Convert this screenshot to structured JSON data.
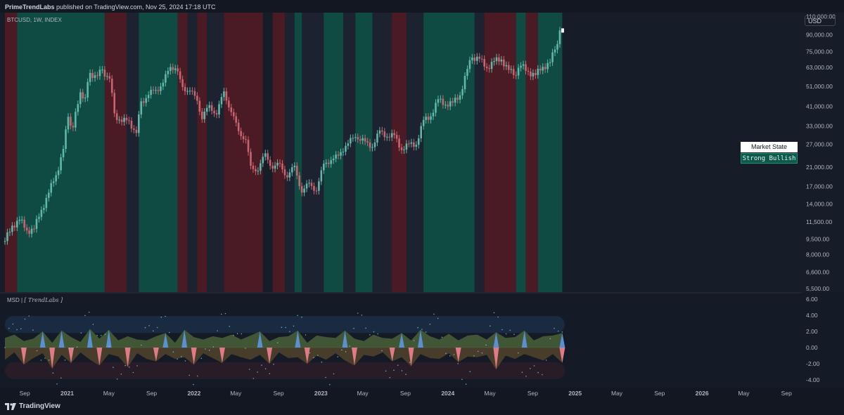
{
  "header": {
    "publisher": "PrimeTrendLabs",
    "published_text": "published on TradingView.com, Nov 25, 2024 17:18 UTC"
  },
  "symbol_label": "BTCUSD, 1W, INDEX",
  "currency_badge": "USD",
  "indicator_label": {
    "name": "MSD",
    "sep": "|",
    "author": "[ TrendLabs ]"
  },
  "market_state": {
    "header": "Market State",
    "value": "Strong Bullish"
  },
  "footer": {
    "brand": "TradingView"
  },
  "colors": {
    "background": "#131722",
    "bull_zone": "#0f4b43",
    "bear_zone": "#4a1a25",
    "neutral_zone": "#1c2230",
    "bull_candle": "#5fb8a8",
    "bear_candle": "#c9646f"
  },
  "chart_data": [
    {
      "type": "candlestick",
      "title": "BTCUSD, 1W, INDEX",
      "y_scale": "log",
      "ylim": [
        5300,
        115000
      ],
      "y_ticks": [
        "110,000.00",
        "90,000.00",
        "75,000.00",
        "63,000.00",
        "51,000.00",
        "41,000.00",
        "33,000.00",
        "27,000.00",
        "21,000.00",
        "17,000.00",
        "14,000.00",
        "11,500.00",
        "9,500.00",
        "8,000.00",
        "6,600.00",
        "5,500.00"
      ],
      "y_tick_values": [
        110000,
        90000,
        75000,
        63000,
        51000,
        41000,
        33000,
        27000,
        21000,
        17000,
        14000,
        11500,
        9500,
        8000,
        6600,
        5500
      ],
      "x_ticks": [
        "Sep",
        "2021",
        "May",
        "Sep",
        "2022",
        "May",
        "Sep",
        "2023",
        "May",
        "Sep",
        "2024",
        "May",
        "Sep",
        "2025",
        "May",
        "Sep",
        "2026",
        "May",
        "Sep"
      ],
      "x_tick_dates": [
        "2020-09-01",
        "2021-01-01",
        "2021-05-01",
        "2021-09-01",
        "2022-01-01",
        "2022-05-01",
        "2022-09-01",
        "2023-01-01",
        "2023-05-01",
        "2023-09-01",
        "2024-01-01",
        "2024-05-01",
        "2024-09-01",
        "2025-01-01",
        "2025-05-01",
        "2025-09-01",
        "2026-01-01",
        "2026-05-01",
        "2026-09-01"
      ],
      "x_range": [
        "2020-07-06",
        "2026-10-15"
      ],
      "last_price": 94500,
      "closes": [
        [
          "2020-07-06",
          9300
        ],
        [
          "2020-07-27",
          11000
        ],
        [
          "2020-08-17",
          11800
        ],
        [
          "2020-09-07",
          10400
        ],
        [
          "2020-09-28",
          10700
        ],
        [
          "2020-10-19",
          13000
        ],
        [
          "2020-11-09",
          16000
        ],
        [
          "2020-11-30",
          19000
        ],
        [
          "2020-12-21",
          26000
        ],
        [
          "2021-01-04",
          36000
        ],
        [
          "2021-01-18",
          33000
        ],
        [
          "2021-02-08",
          47000
        ],
        [
          "2021-02-22",
          46000
        ],
        [
          "2021-03-08",
          58000
        ],
        [
          "2021-03-29",
          58500
        ],
        [
          "2021-04-12",
          60000
        ],
        [
          "2021-05-03",
          57000
        ],
        [
          "2021-05-17",
          37000
        ],
        [
          "2021-06-07",
          35500
        ],
        [
          "2021-06-28",
          34000
        ],
        [
          "2021-07-19",
          31500
        ],
        [
          "2021-08-02",
          42000
        ],
        [
          "2021-08-23",
          48000
        ],
        [
          "2021-09-13",
          47500
        ],
        [
          "2021-10-04",
          55000
        ],
        [
          "2021-10-25",
          61000
        ],
        [
          "2021-11-08",
          64500
        ],
        [
          "2021-11-29",
          49000
        ],
        [
          "2021-12-20",
          50500
        ],
        [
          "2022-01-10",
          42000
        ],
        [
          "2022-01-24",
          37000
        ],
        [
          "2022-02-14",
          40000
        ],
        [
          "2022-03-07",
          39000
        ],
        [
          "2022-03-28",
          46500
        ],
        [
          "2022-04-18",
          40000
        ],
        [
          "2022-05-09",
          30000
        ],
        [
          "2022-05-30",
          29500
        ],
        [
          "2022-06-13",
          20500
        ],
        [
          "2022-07-04",
          21000
        ],
        [
          "2022-07-25",
          23500
        ],
        [
          "2022-08-15",
          21500
        ],
        [
          "2022-09-05",
          21000
        ],
        [
          "2022-09-26",
          19500
        ],
        [
          "2022-10-17",
          20500
        ],
        [
          "2022-11-07",
          16500
        ],
        [
          "2022-11-28",
          17000
        ],
        [
          "2022-12-19",
          16800
        ],
        [
          "2023-01-09",
          21000
        ],
        [
          "2023-01-30",
          23500
        ],
        [
          "2023-02-20",
          23000
        ],
        [
          "2023-03-13",
          27500
        ],
        [
          "2023-04-03",
          28000
        ],
        [
          "2023-04-17",
          29500
        ],
        [
          "2023-05-08",
          27000
        ],
        [
          "2023-05-29",
          27000
        ],
        [
          "2023-06-19",
          30500
        ],
        [
          "2023-07-10",
          30200
        ],
        [
          "2023-07-31",
          29100
        ],
        [
          "2023-08-21",
          26000
        ],
        [
          "2023-09-11",
          26500
        ],
        [
          "2023-10-02",
          27500
        ],
        [
          "2023-10-23",
          34500
        ],
        [
          "2023-11-13",
          37500
        ],
        [
          "2023-12-04",
          43500
        ],
        [
          "2023-12-25",
          42500
        ],
        [
          "2024-01-15",
          42000
        ],
        [
          "2024-02-05",
          47000
        ],
        [
          "2024-02-26",
          61000
        ],
        [
          "2024-03-11",
          71000
        ],
        [
          "2024-04-01",
          68500
        ],
        [
          "2024-04-22",
          63000
        ],
        [
          "2024-05-13",
          67000
        ],
        [
          "2024-06-03",
          69000
        ],
        [
          "2024-06-24",
          61000
        ],
        [
          "2024-07-08",
          58000
        ],
        [
          "2024-07-29",
          64000
        ],
        [
          "2024-08-19",
          60000
        ],
        [
          "2024-09-09",
          58000
        ],
        [
          "2024-09-30",
          63000
        ],
        [
          "2024-10-21",
          67000
        ],
        [
          "2024-11-04",
          76000
        ],
        [
          "2024-11-18",
          94500
        ]
      ]
    },
    {
      "type": "area",
      "title": "MSD | [ TrendLabs ]",
      "ylim": [
        -4.6,
        6.6
      ],
      "y_ticks": [
        "6.00",
        "4.00",
        "2.00",
        "0.00",
        "-2.00",
        "-4.00"
      ],
      "y_tick_values": [
        6,
        4,
        2,
        0,
        -2,
        -4
      ],
      "bands": [
        [
          1.8,
          3.9
        ],
        [
          -1.8,
          -3.9
        ]
      ],
      "series": [
        {
          "values_positive": [
            1.2,
            1.6,
            0.8,
            1.1,
            2.0,
            0.6,
            2.1,
            1.3,
            0.7,
            2.3,
            1.1,
            2.2,
            0.9,
            1.4,
            1.0,
            0.9,
            1.4,
            1.8,
            0.6,
            2.2,
            1.3,
            1.0,
            1.4,
            1.2,
            1.6,
            1.0,
            1.5,
            2.0,
            0.8,
            1.3,
            1.4,
            2.1,
            0.6,
            1.5,
            1.3,
            1.2,
            2.1,
            1.1,
            0.8,
            1.6,
            1.2,
            1.1,
            1.8,
            0.9,
            2.2,
            1.4,
            1.0,
            1.7,
            0.9,
            1.5,
            1.6,
            1.0,
            1.9,
            1.2,
            1.3,
            2.1,
            0.9,
            1.4,
            1.5,
            1.8
          ]
        },
        {
          "values_negative": [
            -1.5,
            -0.6,
            -2.1,
            -1.3,
            -0.7,
            -2.6,
            -0.9,
            -1.9,
            -0.6,
            -1.5,
            -2.2,
            -0.8,
            -1.1,
            -2.4,
            -0.7,
            -1.4,
            -1.7,
            -0.8,
            -1.4,
            -1.2,
            -2.1,
            -0.7,
            -1.3,
            -1.9,
            -0.8,
            -1.2,
            -1.5,
            -0.9,
            -2.0,
            -0.6,
            -1.3,
            -1.2,
            -2.0,
            -1.0,
            -1.5,
            -0.7,
            -1.6,
            -2.2,
            -0.9,
            -1.1,
            -0.6,
            -1.7,
            -1.2,
            -2.3,
            -0.8,
            -1.3,
            -1.4,
            -0.7,
            -1.8,
            -1.1,
            -1.2,
            -0.9,
            -2.7,
            -1.0,
            -1.4,
            -0.8,
            -1.2,
            -1.6,
            -0.8,
            -1.9
          ]
        }
      ]
    }
  ],
  "zones": [
    {
      "state": "bear",
      "from": "2020-07-06",
      "to": "2020-08-10"
    },
    {
      "state": "bull",
      "from": "2020-08-10",
      "to": "2021-04-19"
    },
    {
      "state": "bear",
      "from": "2021-04-19",
      "to": "2021-06-21"
    },
    {
      "state": "neutral",
      "from": "2021-06-21",
      "to": "2021-07-26"
    },
    {
      "state": "bull",
      "from": "2021-07-26",
      "to": "2021-11-15"
    },
    {
      "state": "bear",
      "from": "2021-11-15",
      "to": "2021-12-13"
    },
    {
      "state": "neutral",
      "from": "2021-12-13",
      "to": "2022-01-10"
    },
    {
      "state": "bear",
      "from": "2022-01-10",
      "to": "2022-02-07"
    },
    {
      "state": "neutral",
      "from": "2022-02-07",
      "to": "2022-03-28"
    },
    {
      "state": "bear",
      "from": "2022-03-28",
      "to": "2022-07-18"
    },
    {
      "state": "bear",
      "from": "2022-08-15",
      "to": "2022-09-19"
    },
    {
      "state": "neutral",
      "from": "2022-09-19",
      "to": "2022-10-17"
    },
    {
      "state": "bull",
      "from": "2022-10-17",
      "to": "2022-11-07"
    },
    {
      "state": "neutral",
      "from": "2022-11-07",
      "to": "2023-01-09"
    },
    {
      "state": "bull",
      "from": "2023-01-09",
      "to": "2023-03-06"
    },
    {
      "state": "neutral",
      "from": "2023-03-06",
      "to": "2023-04-10"
    },
    {
      "state": "bull",
      "from": "2023-04-10",
      "to": "2023-05-29"
    },
    {
      "state": "neutral",
      "from": "2023-05-29",
      "to": "2023-07-24"
    },
    {
      "state": "bear",
      "from": "2023-07-24",
      "to": "2023-09-04"
    },
    {
      "state": "neutral",
      "from": "2023-09-04",
      "to": "2023-10-23"
    },
    {
      "state": "bull",
      "from": "2023-10-23",
      "to": "2024-03-18"
    },
    {
      "state": "neutral",
      "from": "2024-03-18",
      "to": "2024-04-15"
    },
    {
      "state": "bear",
      "from": "2024-04-15",
      "to": "2024-07-15"
    },
    {
      "state": "bull",
      "from": "2024-07-15",
      "to": "2024-08-12"
    },
    {
      "state": "bear",
      "from": "2024-08-12",
      "to": "2024-09-16"
    },
    {
      "state": "bull",
      "from": "2024-09-16",
      "to": "2024-11-25"
    }
  ]
}
